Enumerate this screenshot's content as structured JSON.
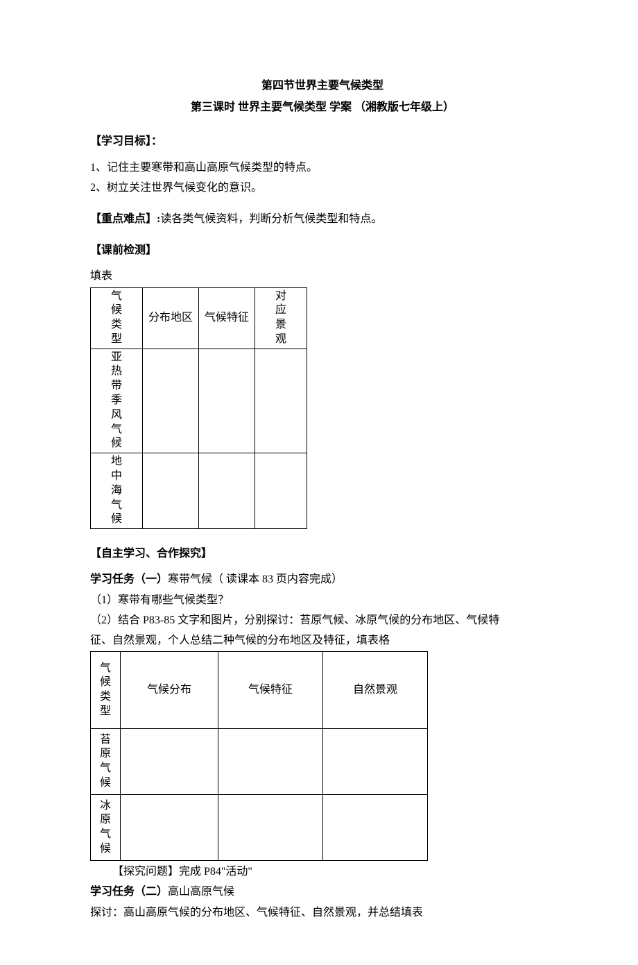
{
  "title": "第四节世界主要气候类型",
  "subtitle": "第三课时  世界主要气候类型  学案  （湘教版七年级上）",
  "s1_head": "【学习目标】：",
  "s1_p1": "1、记住主要寒带和高山高原气候类型的特点。",
  "s1_p2": "2、树立关注世界气候变化的意识。",
  "s2_head": "【重点难点】:",
  "s2_body": "读各类气候资料，判断分析气候类型和特点。",
  "s3_head": "【课前检测】",
  "fillword": "填表",
  "t1": {
    "h0": "气候类型",
    "h1": "分布地区",
    "h2": "气候特征",
    "h3": "对应景观",
    "r1c0": "亚热带季风气候",
    "r2c0": "地中海气候"
  },
  "s4_head": "【自主学习、合作探究】",
  "task1_lead": "学习任务（一）",
  "task1_rest": "寒带气候（ 读课本 83 页内容完成）",
  "task1_q1": "（1）寒带有哪些气候类型？",
  "task1_q2a": "（2）结合 P83-85 文字和图片，分别探讨：苔原气候、冰原气候的分布地区、气候特",
  "task1_q2b": "征、自然景观，个人总结二种气候的分布地区及特征，填表格",
  "t2": {
    "h0": "气候类型",
    "h1": "气候分布",
    "h2": "气候特征",
    "h3": "自然景观",
    "r1c0": "苔原气候",
    "r2c0": "冰原气候"
  },
  "explore": "【探究问题】完成 P84\"活动\"",
  "task2_lead": "学习任务（二）",
  "task2_rest": "高山高原气候",
  "task2_body": "探讨：高山高原气候的分布地区、气候特征、自然景观，并总结填表"
}
